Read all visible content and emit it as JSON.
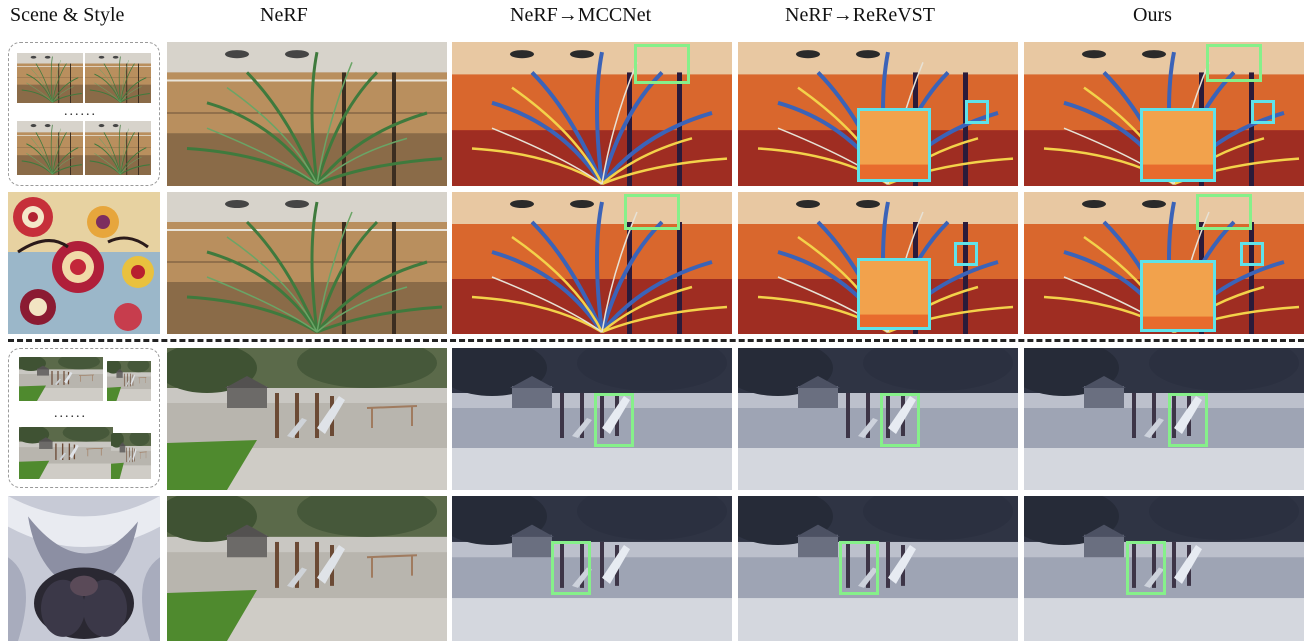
{
  "column_headers": [
    "Scene & Style",
    "NeRF",
    "NeRF→MCCNet",
    "NeRF→ReReVST",
    "Ours"
  ],
  "scene_dots": "......",
  "colors": {
    "zoom_box_green": "#86f08a",
    "zoom_box_cyan": "#5fe3ea",
    "divider": "#222222",
    "scene_box_border": "#9a9a9a"
  },
  "rows": [
    {
      "scene": "fern",
      "style": "colorful-circles-painting",
      "methods": [
        "nerf",
        "mccnet",
        "rerevst",
        "ours"
      ]
    },
    {
      "scene": "fern",
      "style": "colorful-circles-painting",
      "methods": [
        "nerf",
        "mccnet",
        "rerevst",
        "ours"
      ]
    },
    {
      "scene": "playground",
      "style": "flower-painting",
      "methods": [
        "nerf",
        "mccnet",
        "rerevst",
        "ours"
      ]
    },
    {
      "scene": "playground",
      "style": "flower-painting",
      "methods": [
        "nerf",
        "mccnet",
        "rerevst",
        "ours"
      ]
    }
  ]
}
